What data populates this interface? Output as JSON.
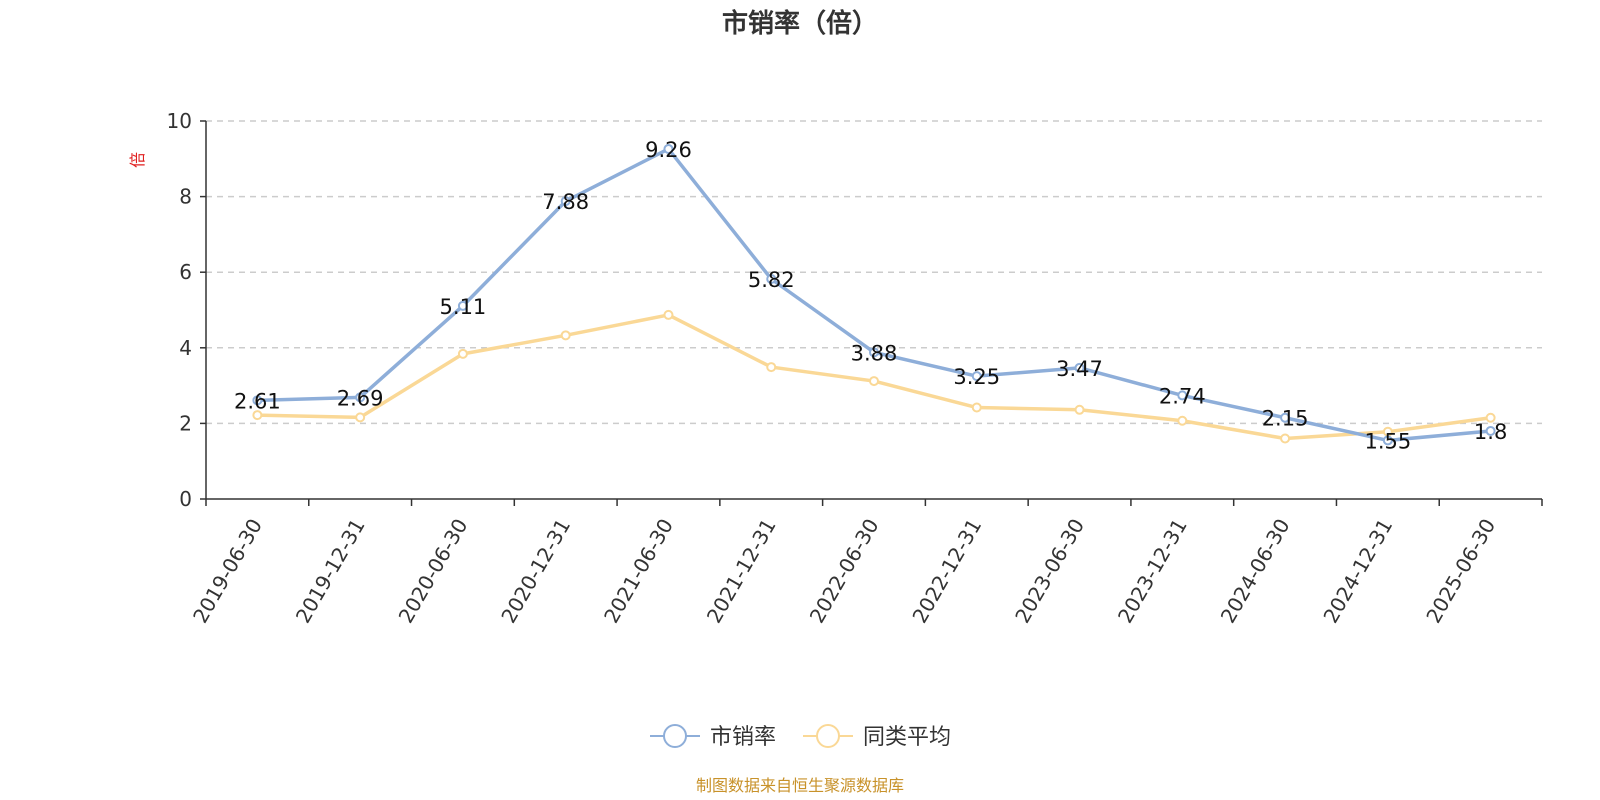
{
  "chart_data": {
    "type": "line",
    "title": "市销率（倍）",
    "ylabel": "倍",
    "categories": [
      "2019-06-30",
      "2019-12-31",
      "2020-06-30",
      "2020-12-31",
      "2021-06-30",
      "2021-12-31",
      "2022-06-30",
      "2022-12-31",
      "2023-06-30",
      "2023-12-31",
      "2024-06-30",
      "2024-12-31",
      "2025-06-30"
    ],
    "series": [
      {
        "name": "市销率",
        "color": "#8eaed9",
        "values": [
          2.61,
          2.69,
          5.11,
          7.88,
          9.26,
          5.82,
          3.88,
          3.25,
          3.47,
          2.74,
          2.15,
          1.55,
          1.8
        ],
        "labels": [
          "2.61",
          "2.69",
          "5.11",
          "7.88",
          "9.26",
          "5.82",
          "3.88",
          "3.25",
          "3.47",
          "2.74",
          "2.15",
          "1.55",
          "1.8"
        ]
      },
      {
        "name": "同类平均",
        "color": "#fad896",
        "values": [
          2.22,
          2.16,
          3.84,
          4.33,
          4.87,
          3.49,
          3.12,
          2.42,
          2.36,
          2.07,
          1.6,
          1.78,
          2.15
        ]
      }
    ],
    "ylim": [
      0,
      10
    ],
    "yticks": [
      0,
      2,
      4,
      6,
      8,
      10
    ],
    "grid": true,
    "legend_position": "bottom-center"
  },
  "source_note": "制图数据来自恒生聚源数据库"
}
